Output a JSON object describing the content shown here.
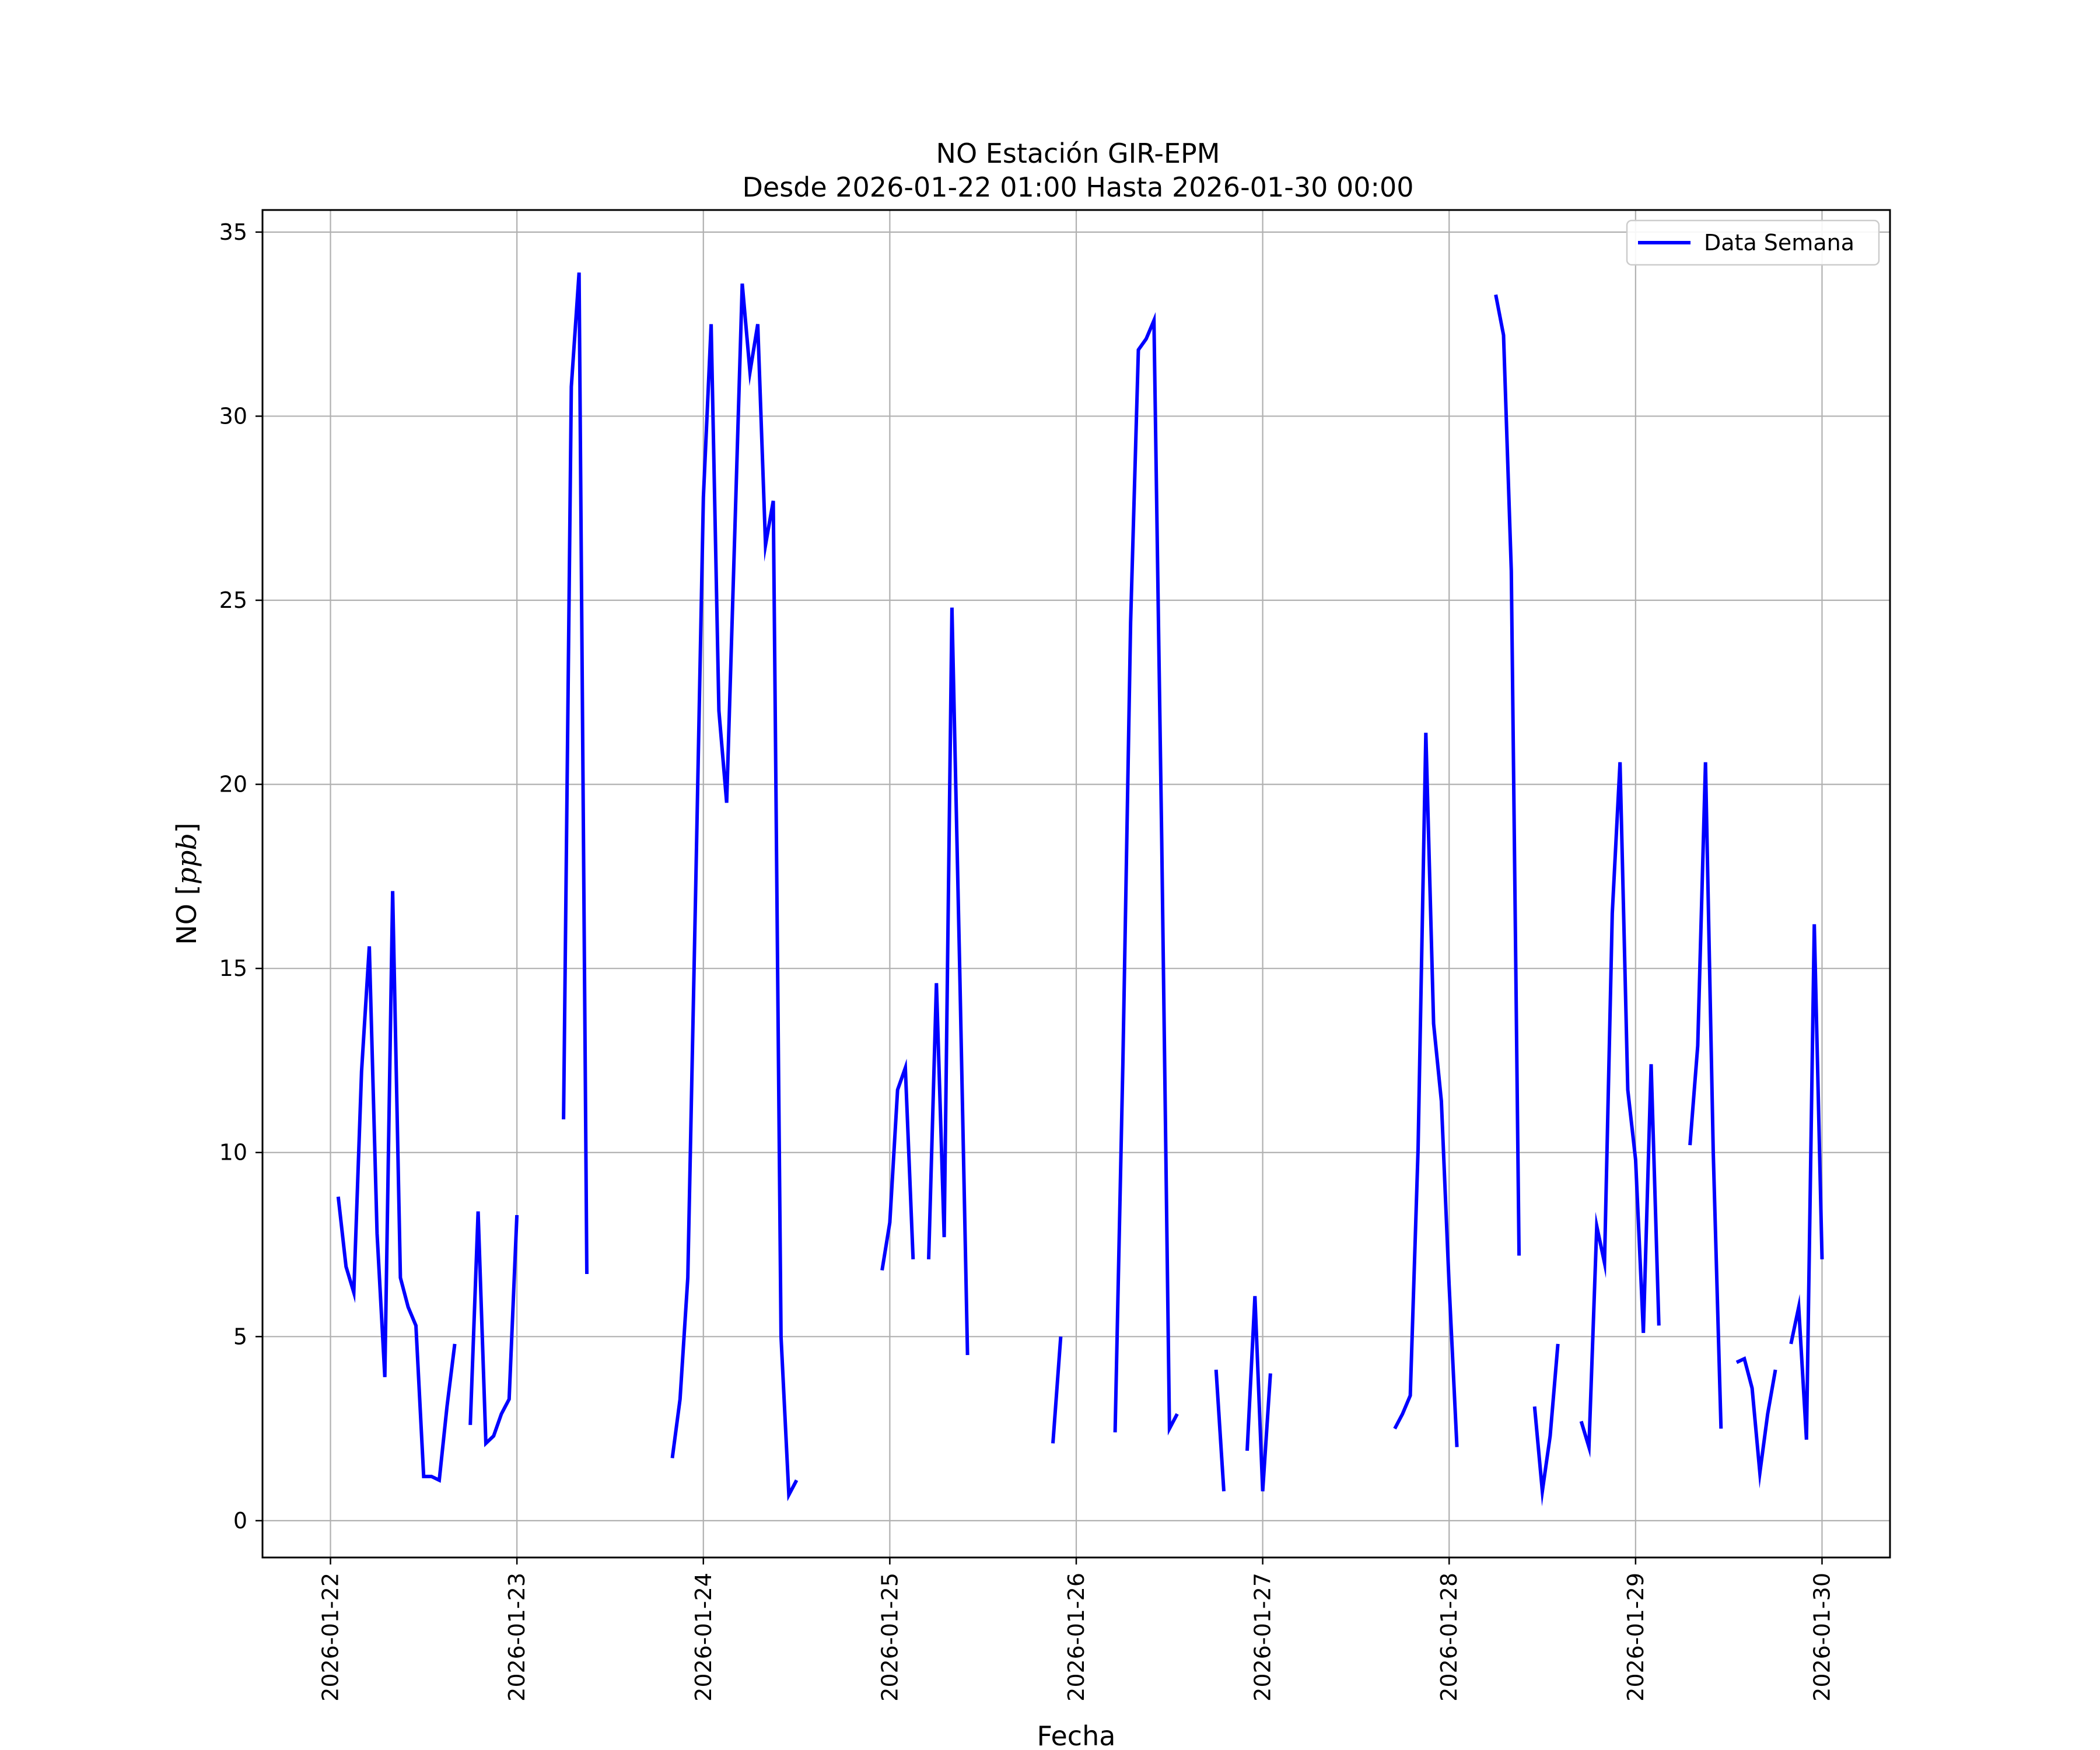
{
  "chart_data": {
    "type": "line",
    "title": "NO Estación GIR-EPM",
    "subtitle": "Desde 2026-01-22 01:00 Hasta 2026-01-30 00:00",
    "xlabel": "Fecha",
    "ylabel": "NO [ppb]",
    "ylim": [
      -1,
      35.6
    ],
    "xlim": [
      "2026-01-21 15:15",
      "2026-01-30 08:45"
    ],
    "x_ticks": [
      "2026-01-22",
      "2026-01-23",
      "2026-01-24",
      "2026-01-25",
      "2026-01-26",
      "2026-01-27",
      "2026-01-28",
      "2026-01-29",
      "2026-01-30"
    ],
    "y_ticks": [
      0,
      5,
      10,
      15,
      20,
      25,
      30,
      35
    ],
    "grid": true,
    "legend_position": "top-right",
    "colors": {
      "series": "#0000ff",
      "grid": "#b0b0b0"
    },
    "series": [
      {
        "name": "Data Semana",
        "segments": [
          [
            [
              "2026-01-22 01:00",
              8.8
            ],
            [
              "2026-01-22 02:00",
              6.9
            ],
            [
              "2026-01-22 03:00",
              6.2
            ],
            [
              "2026-01-22 04:00",
              12.2
            ],
            [
              "2026-01-22 05:00",
              15.6
            ],
            [
              "2026-01-22 06:00",
              7.8
            ],
            [
              "2026-01-22 07:00",
              3.9
            ],
            [
              "2026-01-22 08:00",
              17.1
            ],
            [
              "2026-01-22 09:00",
              6.6
            ],
            [
              "2026-01-22 10:00",
              5.8
            ],
            [
              "2026-01-22 11:00",
              5.3
            ],
            [
              "2026-01-22 12:00",
              1.2
            ],
            [
              "2026-01-22 13:00",
              1.2
            ],
            [
              "2026-01-22 14:00",
              1.1
            ],
            [
              "2026-01-22 15:00",
              3.1
            ],
            [
              "2026-01-22 16:00",
              4.8
            ]
          ],
          [
            [
              "2026-01-22 18:00",
              2.6
            ],
            [
              "2026-01-22 19:00",
              8.4
            ],
            [
              "2026-01-22 20:00",
              2.1
            ],
            [
              "2026-01-22 21:00",
              2.3
            ],
            [
              "2026-01-22 22:00",
              2.9
            ],
            [
              "2026-01-22 23:00",
              3.3
            ],
            [
              "2026-01-23 00:00",
              8.3
            ]
          ],
          [
            [
              "2026-01-23 06:00",
              10.9
            ],
            [
              "2026-01-23 07:00",
              30.8
            ],
            [
              "2026-01-23 08:00",
              33.9
            ],
            [
              "2026-01-23 09:00",
              6.7
            ]
          ],
          [
            [
              "2026-01-23 20:00",
              1.7
            ],
            [
              "2026-01-23 21:00",
              3.3
            ],
            [
              "2026-01-23 22:00",
              6.6
            ],
            [
              "2026-01-23 23:00",
              17.0
            ],
            [
              "2026-01-24 00:00",
              27.8
            ],
            [
              "2026-01-24 01:00",
              32.5
            ],
            [
              "2026-01-24 02:00",
              22.0
            ],
            [
              "2026-01-24 03:00",
              19.5
            ],
            [
              "2026-01-24 04:00",
              26.5
            ],
            [
              "2026-01-24 05:00",
              33.6
            ],
            [
              "2026-01-24 06:00",
              31.2
            ],
            [
              "2026-01-24 07:00",
              32.5
            ],
            [
              "2026-01-24 08:00",
              26.5
            ],
            [
              "2026-01-24 09:00",
              27.7
            ],
            [
              "2026-01-24 10:00",
              5.0
            ],
            [
              "2026-01-24 11:00",
              0.7
            ],
            [
              "2026-01-24 12:00",
              1.1
            ]
          ],
          [
            [
              "2026-01-24 23:00",
              6.8
            ],
            [
              "2026-01-25 00:00",
              8.1
            ],
            [
              "2026-01-25 01:00",
              11.7
            ],
            [
              "2026-01-25 02:00",
              12.3
            ],
            [
              "2026-01-25 03:00",
              7.1
            ]
          ],
          [
            [
              "2026-01-25 05:00",
              7.1
            ],
            [
              "2026-01-25 06:00",
              14.6
            ],
            [
              "2026-01-25 07:00",
              7.7
            ],
            [
              "2026-01-25 08:00",
              24.8
            ],
            [
              "2026-01-25 09:00",
              15.0
            ],
            [
              "2026-01-25 10:00",
              4.5
            ]
          ],
          [
            [
              "2026-01-25 21:00",
              2.1
            ],
            [
              "2026-01-25 22:00",
              5.0
            ]
          ],
          [
            [
              "2026-01-26 05:00",
              2.4
            ],
            [
              "2026-01-26 06:00",
              12.4
            ],
            [
              "2026-01-26 07:00",
              24.4
            ],
            [
              "2026-01-26 08:00",
              31.8
            ],
            [
              "2026-01-26 09:00",
              32.1
            ],
            [
              "2026-01-26 10:00",
              32.6
            ],
            [
              "2026-01-26 11:00",
              18.5
            ],
            [
              "2026-01-26 12:00",
              2.5
            ],
            [
              "2026-01-26 13:00",
              2.9
            ]
          ],
          [
            [
              "2026-01-26 18:00",
              4.1
            ],
            [
              "2026-01-26 19:00",
              0.8
            ]
          ],
          [
            [
              "2026-01-26 22:00",
              1.9
            ],
            [
              "2026-01-26 23:00",
              6.1
            ],
            [
              "2026-01-27 00:00",
              0.8
            ],
            [
              "2026-01-27 01:00",
              4.0
            ]
          ],
          [
            [
              "2026-01-27 17:00",
              2.5
            ],
            [
              "2026-01-27 18:00",
              2.9
            ],
            [
              "2026-01-27 19:00",
              3.4
            ],
            [
              "2026-01-27 20:00",
              10.1
            ],
            [
              "2026-01-27 21:00",
              21.4
            ],
            [
              "2026-01-27 22:00",
              13.5
            ],
            [
              "2026-01-27 23:00",
              11.4
            ],
            [
              "2026-01-28 00:00",
              6.4
            ],
            [
              "2026-01-28 01:00",
              2.0
            ]
          ],
          [
            [
              "2026-01-28 06:00",
              33.3
            ],
            [
              "2026-01-28 07:00",
              32.2
            ],
            [
              "2026-01-28 08:00",
              25.8
            ],
            [
              "2026-01-28 09:00",
              7.2
            ]
          ],
          [
            [
              "2026-01-28 11:00",
              3.1
            ],
            [
              "2026-01-28 12:00",
              0.8
            ],
            [
              "2026-01-28 13:00",
              2.3
            ],
            [
              "2026-01-28 14:00",
              4.8
            ]
          ],
          [
            [
              "2026-01-28 17:00",
              2.7
            ],
            [
              "2026-01-28 18:00",
              2.0
            ],
            [
              "2026-01-28 19:00",
              8.0
            ],
            [
              "2026-01-28 20:00",
              7.0
            ],
            [
              "2026-01-28 21:00",
              16.5
            ],
            [
              "2026-01-28 22:00",
              20.6
            ],
            [
              "2026-01-28 23:00",
              11.7
            ],
            [
              "2026-01-29 00:00",
              9.8
            ],
            [
              "2026-01-29 01:00",
              5.1
            ],
            [
              "2026-01-29 02:00",
              12.4
            ],
            [
              "2026-01-29 03:00",
              5.3
            ]
          ],
          [
            [
              "2026-01-29 07:00",
              10.2
            ],
            [
              "2026-01-29 08:00",
              12.9
            ],
            [
              "2026-01-29 09:00",
              20.6
            ],
            [
              "2026-01-29 10:00",
              10.0
            ],
            [
              "2026-01-29 11:00",
              2.5
            ]
          ],
          [
            [
              "2026-01-29 13:00",
              4.3
            ],
            [
              "2026-01-29 14:00",
              4.4
            ],
            [
              "2026-01-29 15:00",
              3.6
            ],
            [
              "2026-01-29 16:00",
              1.3
            ],
            [
              "2026-01-29 17:00",
              2.9
            ],
            [
              "2026-01-29 18:00",
              4.1
            ]
          ],
          [
            [
              "2026-01-29 20:00",
              4.8
            ],
            [
              "2026-01-29 21:00",
              5.8
            ],
            [
              "2026-01-29 22:00",
              2.2
            ],
            [
              "2026-01-29 23:00",
              16.2
            ],
            [
              "2026-01-30 00:00",
              7.1
            ]
          ]
        ]
      }
    ]
  }
}
